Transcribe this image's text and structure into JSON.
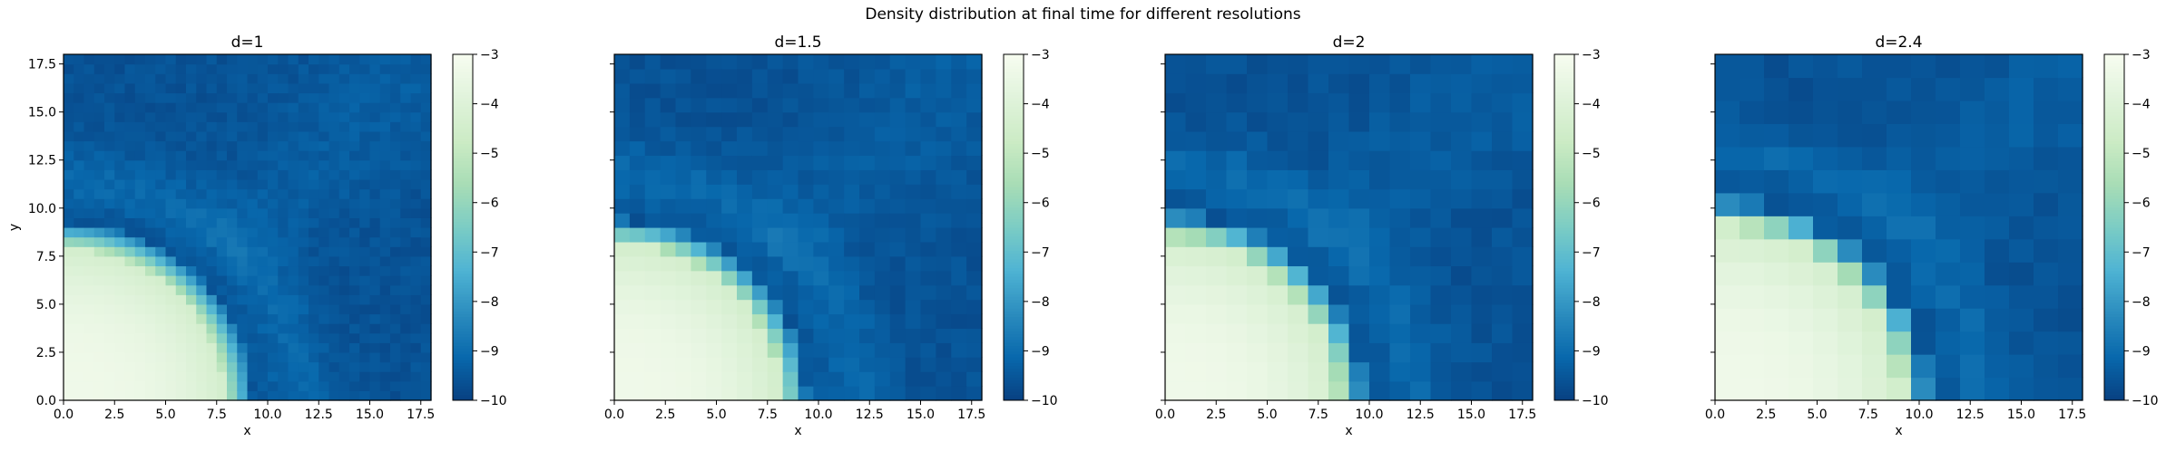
{
  "chart_data": {
    "type": "heatmap",
    "suptitle": "Density distribution at final time for different resolutions",
    "xlabel": "x",
    "ylabel": "y",
    "xlim": [
      0,
      18
    ],
    "ylim": [
      0,
      18
    ],
    "xticks": [
      "0.0",
      "2.5",
      "5.0",
      "7.5",
      "10.0",
      "12.5",
      "15.0",
      "17.5"
    ],
    "yticks": [
      "0.0",
      "2.5",
      "5.0",
      "7.5",
      "10.0",
      "12.5",
      "15.0",
      "17.5"
    ],
    "colorbar": {
      "vmin": -10,
      "vmax": -3,
      "ticks": [
        "−10",
        "−9",
        "−8",
        "−7",
        "−6",
        "−5",
        "−4",
        "−3"
      ],
      "colormap": "GnBu",
      "colors": [
        "#084081",
        "#0868ac",
        "#2b8cbe",
        "#4eb3d3",
        "#7bccc4",
        "#a8ddb5",
        "#ccebc5",
        "#e0f3db",
        "#f7fcf0"
      ]
    },
    "panels": [
      {
        "title": "d=1",
        "cell_size": 0.5,
        "front_radius": 8.8,
        "wave_radius": 11.5
      },
      {
        "title": "d=1.5",
        "cell_size": 0.75,
        "front_radius": 9.0,
        "wave_radius": 11.8
      },
      {
        "title": "d=2",
        "cell_size": 1.0,
        "front_radius": 9.3,
        "wave_radius": 12.2
      },
      {
        "title": "d=2.4",
        "cell_size": 1.2,
        "front_radius": 10.0,
        "wave_radius": 13.0
      }
    ],
    "grid": false
  }
}
